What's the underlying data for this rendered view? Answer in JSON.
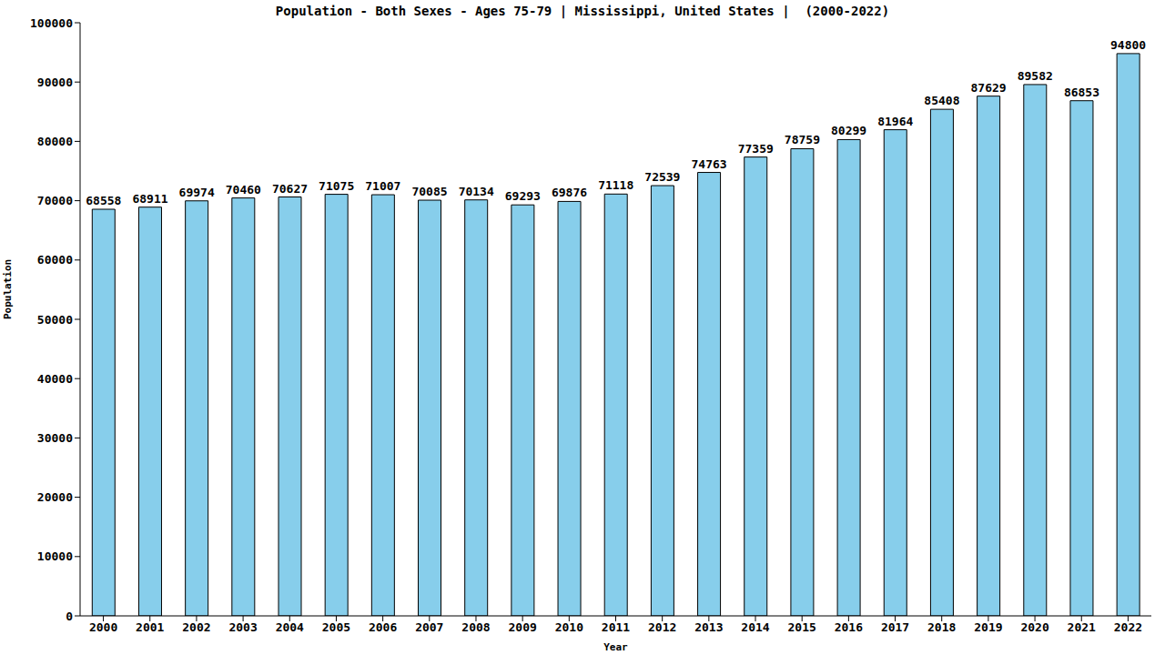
{
  "chart_data": {
    "type": "bar",
    "title": "Population - Both Sexes - Ages 75-79 | Mississippi, United States |  (2000-2022)",
    "x_label": "Year",
    "y_label": "Population",
    "categories": [
      "2000",
      "2001",
      "2002",
      "2003",
      "2004",
      "2005",
      "2006",
      "2007",
      "2008",
      "2009",
      "2010",
      "2011",
      "2012",
      "2013",
      "2014",
      "2015",
      "2016",
      "2017",
      "2018",
      "2019",
      "2020",
      "2021",
      "2022"
    ],
    "values": [
      68558,
      68911,
      69974,
      70460,
      70627,
      71075,
      71007,
      70085,
      70134,
      69293,
      69876,
      71118,
      72539,
      74763,
      77359,
      78759,
      80299,
      81964,
      85408,
      87629,
      89582,
      86853,
      94800
    ],
    "color": "#87ceeb",
    "ylim": [
      0,
      100000
    ],
    "yticks": [
      0,
      10000,
      20000,
      30000,
      40000,
      50000,
      60000,
      70000,
      80000,
      90000,
      100000
    ],
    "grid": false,
    "data_labels": true
  }
}
